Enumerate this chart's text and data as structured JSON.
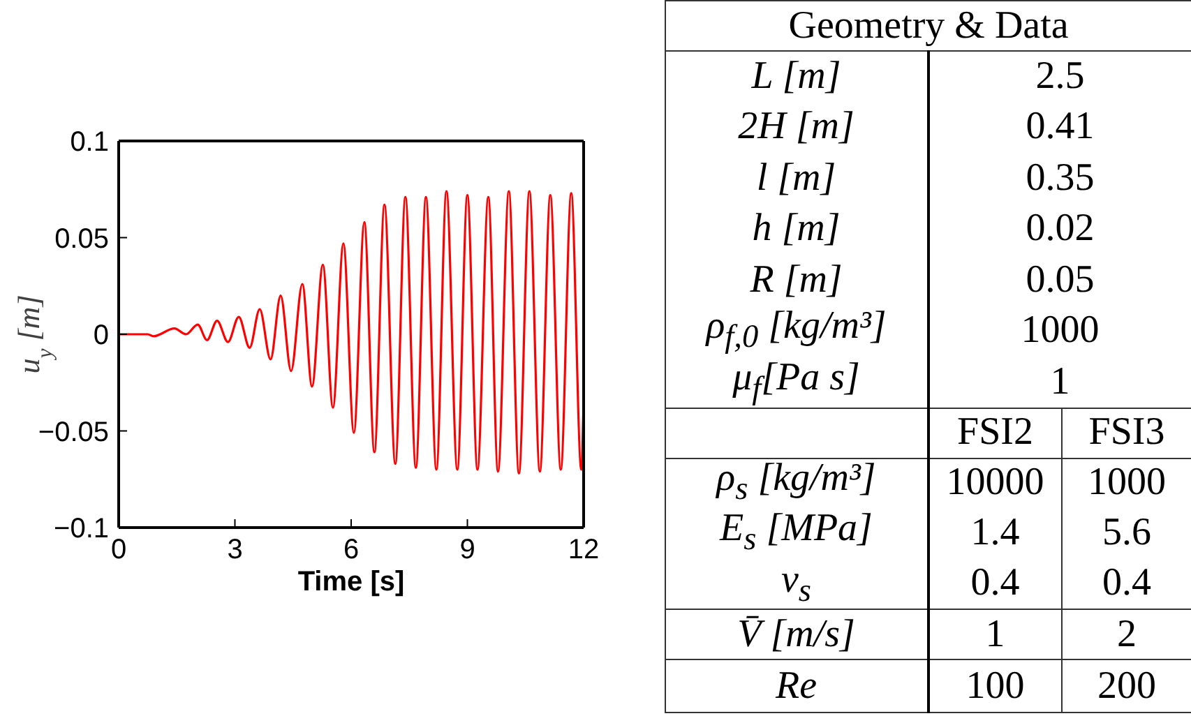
{
  "chart_data": [
    {
      "type": "line",
      "xlabel": "Time [s]",
      "ylabel": "u$_{y}$ [m]",
      "x": [
        0,
        0.75,
        0.9,
        1.44,
        1.74,
        2.04,
        2.28,
        2.54,
        2.82,
        3.1,
        3.38,
        3.64,
        3.92,
        4.18,
        4.45,
        4.74,
        4.99,
        5.27,
        5.53,
        5.8,
        6.07,
        6.34,
        6.6,
        6.86,
        7.14,
        7.4,
        7.67,
        7.93,
        8.2,
        8.46,
        8.74,
        9.0,
        9.26,
        9.54,
        9.79,
        10.07,
        10.33,
        10.6,
        10.87,
        11.14,
        11.41,
        11.68,
        11.94,
        12
      ],
      "series": [
        {
          "color": "#ff0000",
          "values": [
            0,
            0,
            -0.001,
            0.003,
            0,
            0.005,
            -0.003,
            0.007,
            -0.004,
            0.009,
            -0.007,
            0.013,
            -0.013,
            0.02,
            -0.019,
            0.026,
            -0.027,
            0.036,
            -0.038,
            0.047,
            -0.051,
            0.058,
            -0.061,
            0.067,
            -0.067,
            0.071,
            -0.069,
            0.071,
            -0.07,
            0.074,
            -0.07,
            0.072,
            -0.07,
            0.071,
            -0.071,
            0.074,
            -0.072,
            0.074,
            -0.071,
            0.072,
            -0.07,
            0.073,
            -0.07,
            -0.034
          ]
        }
      ],
      "xlim": [
        0,
        12
      ],
      "ylim": [
        -0.1,
        0.1
      ],
      "xticks": [
        0,
        3,
        6,
        9,
        12
      ],
      "yticks": [
        {
          "value": -0.1,
          "label": "−0.1"
        },
        {
          "value": -0.05,
          "label": "−0.05"
        },
        0,
        0.05,
        0.1
      ],
      "line_style": "solid"
    },
    {
      "type": "other",
      "title": "Geometry & Data",
      "annotations": [
        "L [m]",
        "2.5",
        "2H [m]",
        "0.41",
        "l [m]",
        "0.35",
        "h [m]",
        "0.02",
        "R [m]",
        "0.05",
        "ρ$_{f,0}$ [kg/m³]",
        "1000",
        "μ$_{f}$[Pa s]",
        "1",
        "FSI2",
        "FSI3",
        "ρ$_{s}$ [kg/m³]",
        "10000",
        "1000",
        "E$_{s}$ [MPa]",
        "1.4",
        "5.6",
        "ν$_{s}$",
        "0.4",
        "0.4",
        "V̄ [m/s]",
        "1",
        "2",
        "Re",
        "100",
        "200"
      ]
    }
  ]
}
